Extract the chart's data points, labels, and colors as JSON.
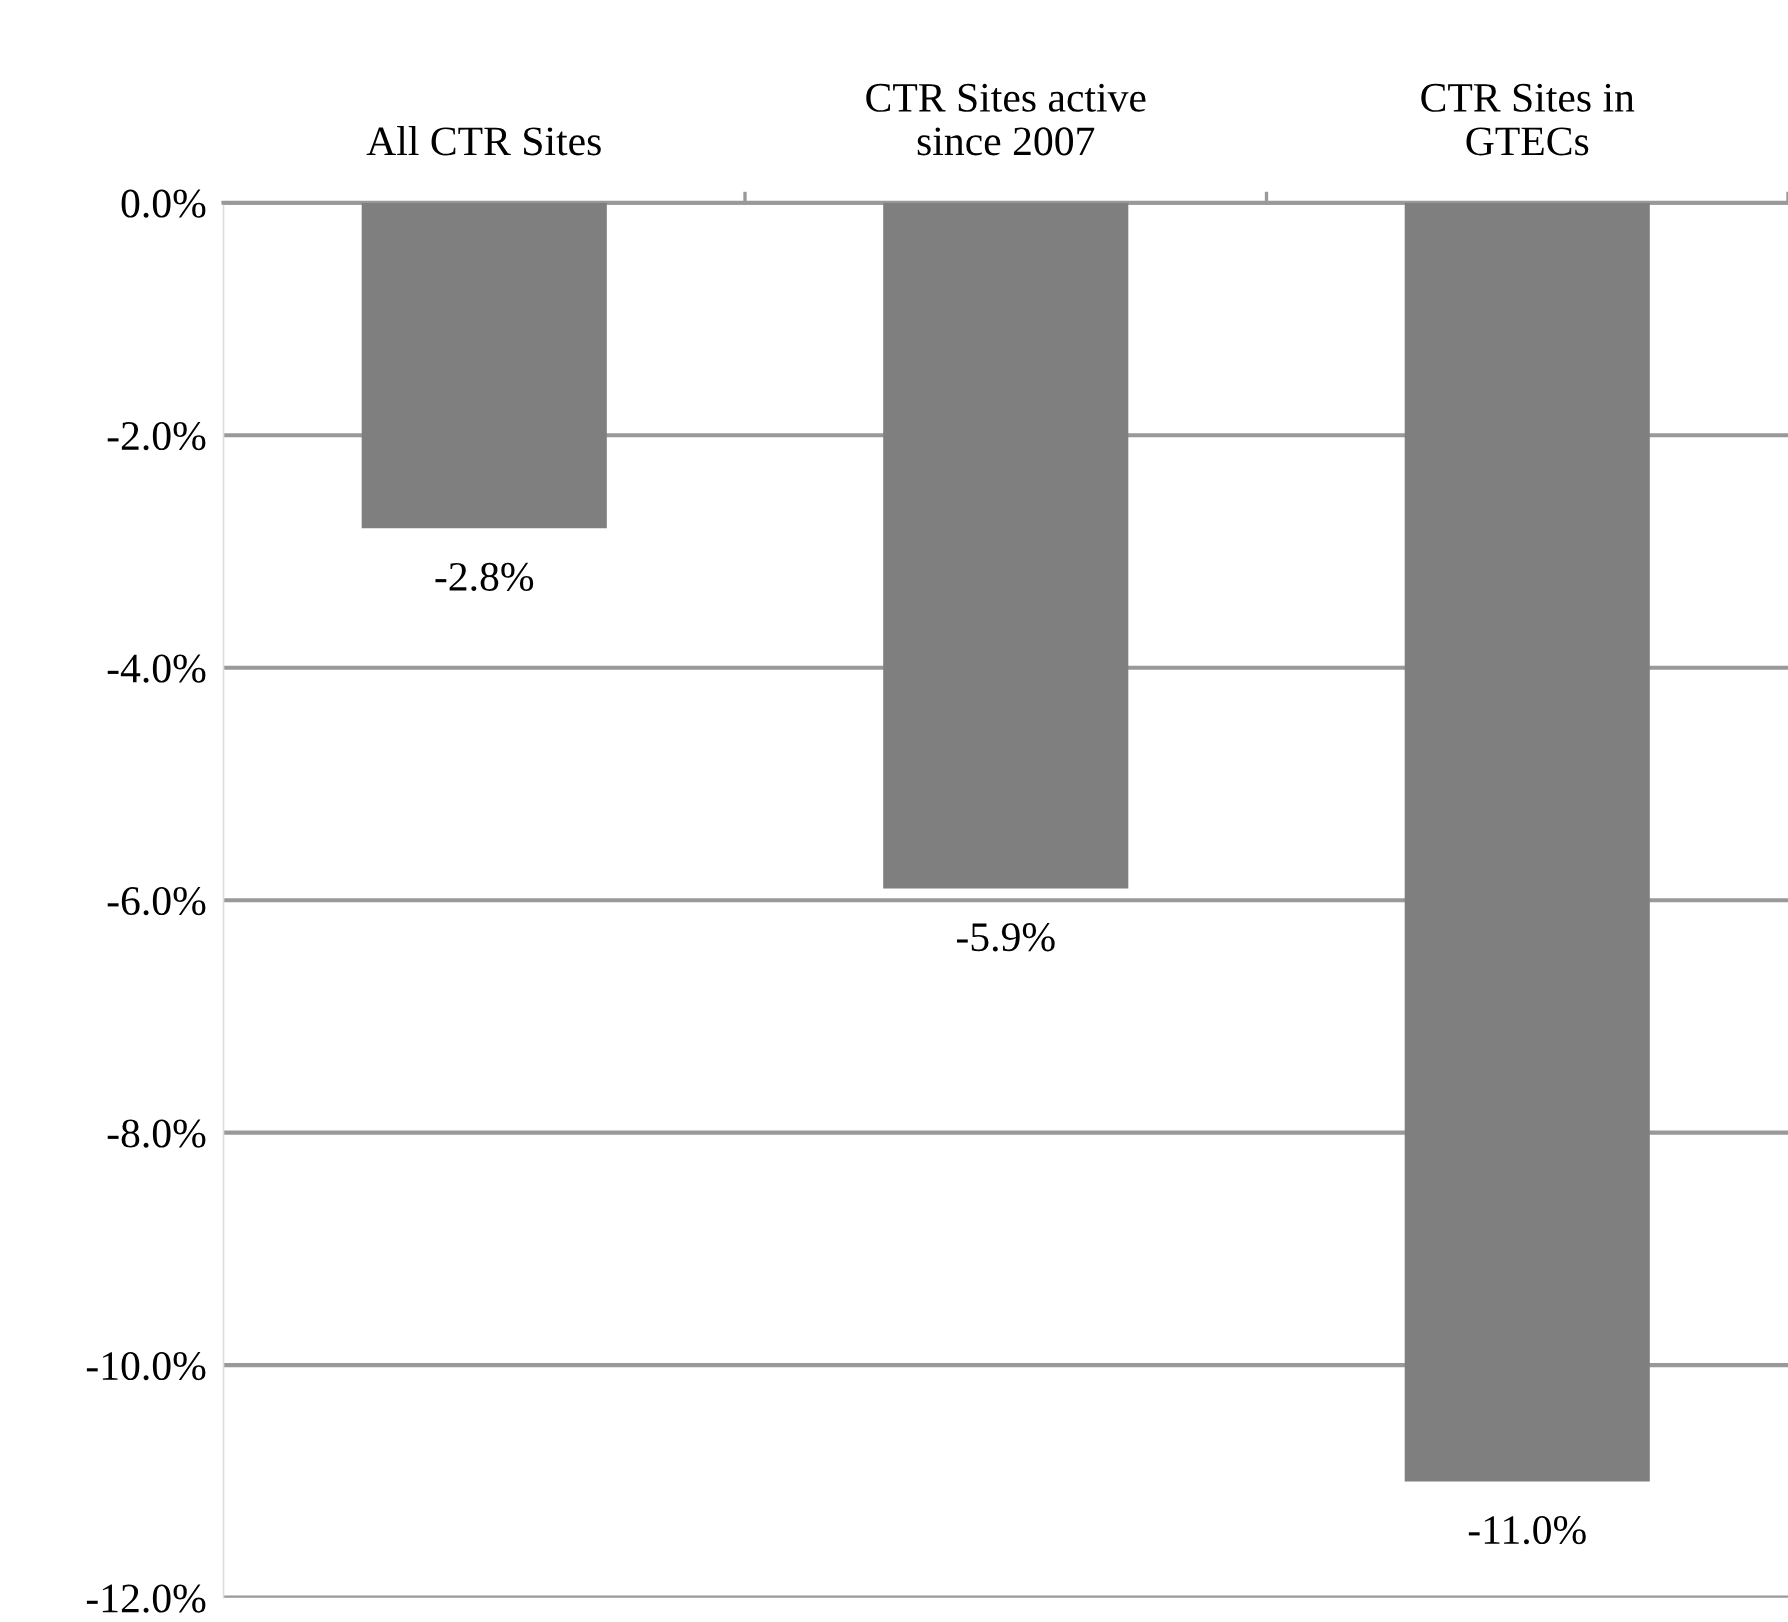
{
  "chart_data": {
    "type": "bar",
    "categories": [
      "All CTR Sites",
      "CTR Sites active\nsince 2007",
      "CTR Sites in\nGTECs"
    ],
    "values": [
      -2.8,
      -5.9,
      -11.0
    ],
    "value_labels": [
      "-2.8%",
      "-5.9%",
      "-11.0%"
    ],
    "color": "#7f7f7f",
    "ylim": [
      -12,
      0
    ],
    "yticks": [
      {
        "value": 0,
        "label": "0.0%"
      },
      {
        "value": -2,
        "label": "-2.0%"
      },
      {
        "value": -4,
        "label": "-4.0%"
      },
      {
        "value": -6,
        "label": "-6.0%"
      },
      {
        "value": -8,
        "label": "-8.0%"
      },
      {
        "value": -10,
        "label": "-10.0%"
      },
      {
        "value": -12,
        "label": "-12.0%"
      }
    ],
    "grid": "y",
    "legend": false
  }
}
